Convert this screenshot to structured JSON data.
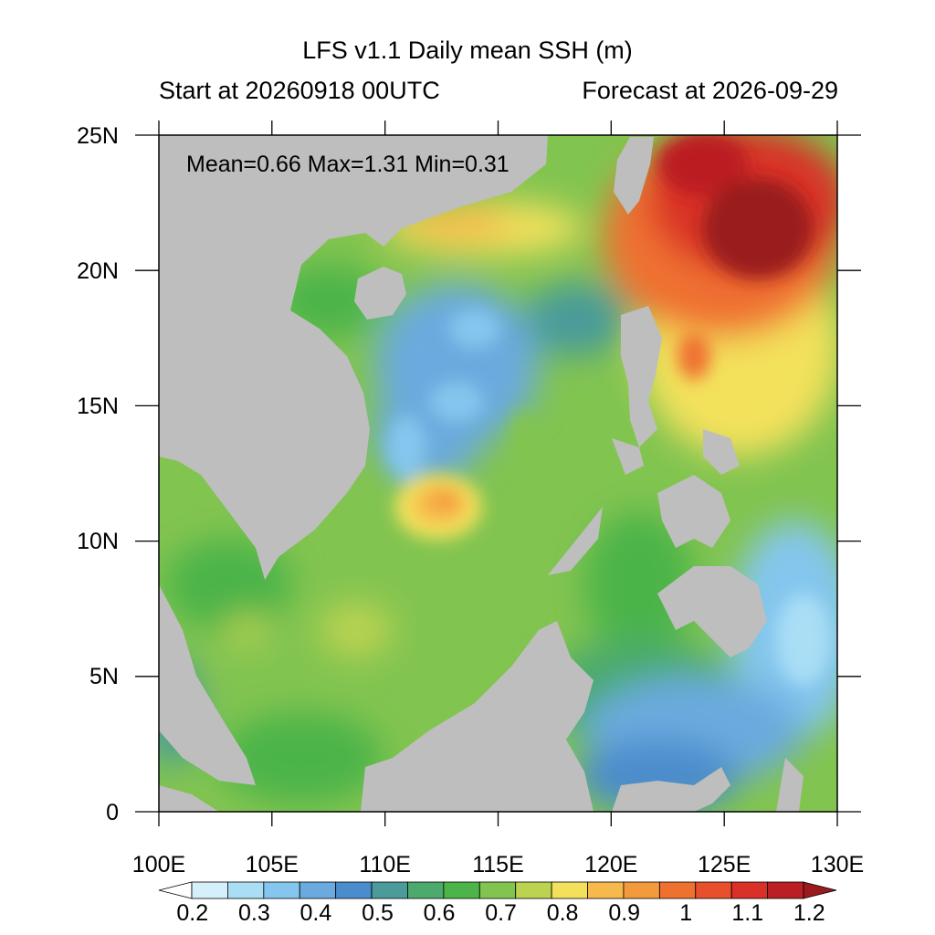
{
  "title": "LFS v1.1 Daily mean SSH (m)",
  "subtitle_left": "Start at 20260918 00UTC",
  "subtitle_right": "Forecast at 2026-09-29",
  "stats": "Mean=0.66  Max=1.31  Min=0.31",
  "lon_ticks": [
    "100E",
    "105E",
    "110E",
    "115E",
    "120E",
    "125E",
    "130E"
  ],
  "lat_ticks": [
    "25N",
    "20N",
    "15N",
    "10N",
    "5N",
    "0"
  ],
  "colorbar": {
    "labels": [
      "0.2",
      "0.3",
      "0.4",
      "0.5",
      "0.6",
      "0.7",
      "0.8",
      "0.9",
      "1",
      "1.1",
      "1.2"
    ],
    "colors": [
      "#ffffff",
      "#d6f0fb",
      "#a9def5",
      "#84c6ee",
      "#6aaade",
      "#4b8ccc",
      "#4a9b9a",
      "#4caa6c",
      "#4cb448",
      "#82c450",
      "#bcd351",
      "#f3e15b",
      "#f6b94c",
      "#f39a3d",
      "#ef7130",
      "#e8502b",
      "#d93028",
      "#bb1f24",
      "#9a1a1d"
    ]
  },
  "colors": {
    "land": "#bebebe",
    "frame": "#000000"
  }
}
